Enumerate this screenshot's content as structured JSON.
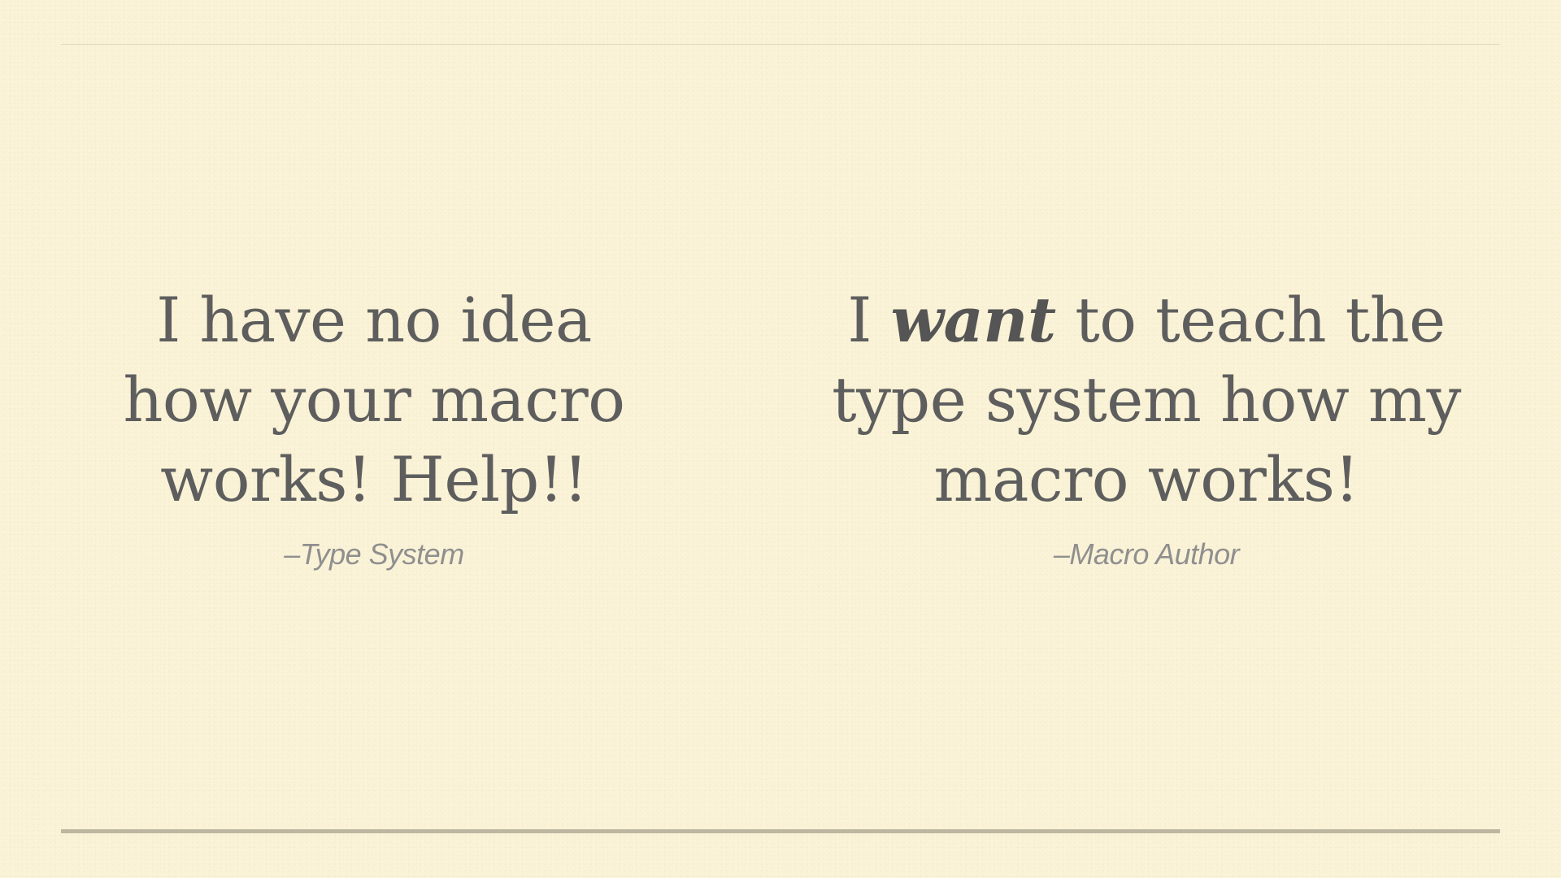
{
  "slide": {
    "background_color": "#fbf3d7",
    "text_color": "#5e5e5e",
    "attribution_color": "#8f8f8f",
    "rule_color": "#bdb7a2"
  },
  "quote_left": {
    "lines": [
      "I have no idea",
      "how your macro",
      "works! Help!!"
    ],
    "attribution": "–Type System"
  },
  "quote_right": {
    "line1_prefix": "I ",
    "line1_emphasis": "want",
    "line1_suffix": " to teach the",
    "line2": "type system how my",
    "line3": "macro works!",
    "attribution": "–Macro Author"
  }
}
